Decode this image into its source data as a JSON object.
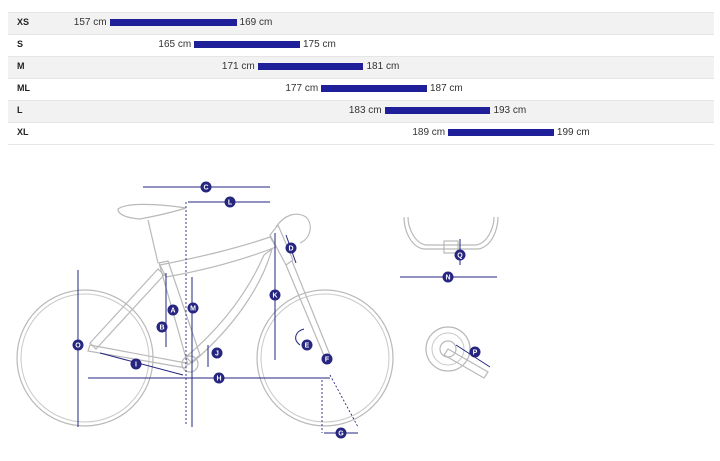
{
  "size_chart": {
    "rows": [
      {
        "size": "XS",
        "min": "157 cm",
        "max": "169 cm",
        "min_cm": 157,
        "max_cm": 169
      },
      {
        "size": "S",
        "min": "165 cm",
        "max": "175 cm",
        "min_cm": 165,
        "max_cm": 175
      },
      {
        "size": "M",
        "min": "171 cm",
        "max": "181 cm",
        "min_cm": 171,
        "max_cm": 181
      },
      {
        "size": "ML",
        "min": "177 cm",
        "max": "187 cm",
        "min_cm": 177,
        "max_cm": 187
      },
      {
        "size": "L",
        "min": "183 cm",
        "max": "193 cm",
        "min_cm": 183,
        "max_cm": 193
      },
      {
        "size": "XL",
        "min": "189 cm",
        "max": "199 cm",
        "min_cm": 189,
        "max_cm": 199
      }
    ],
    "bar_color": "#1f1f9a",
    "label_color": "#262680"
  },
  "geometry_labels": {
    "A": "A",
    "B": "B",
    "C": "C",
    "D": "D",
    "E": "E",
    "F": "F",
    "G": "G",
    "H": "H",
    "I": "I",
    "J": "J",
    "K": "K",
    "L": "L",
    "M": "M",
    "N": "N",
    "O": "O",
    "P": "P",
    "Q": "Q"
  }
}
